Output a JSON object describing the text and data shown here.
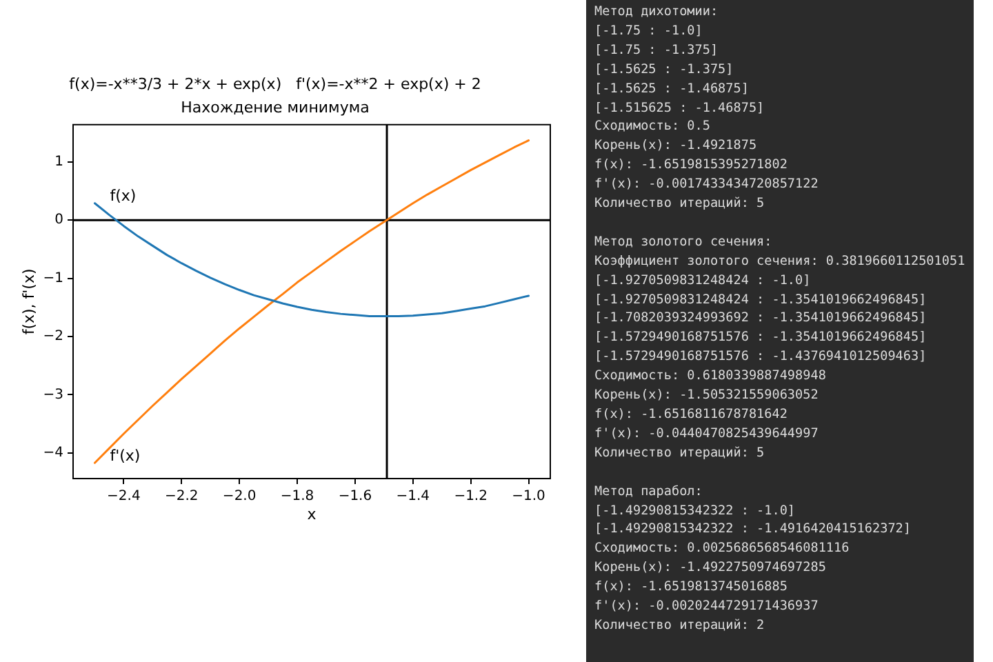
{
  "chart_data": {
    "type": "line",
    "title": "f(x)=-x**3/3 + 2*x + exp(x)   f'(x)=-x**2 + exp(x) + 2",
    "subtitle": "Нахождение минимума",
    "xlabel": "x",
    "ylabel": "f(x), f'(x)",
    "x": [
      -2.5,
      -2.45,
      -2.4,
      -2.35,
      -2.3,
      -2.25,
      -2.2,
      -2.15,
      -2.1,
      -2.05,
      -2.0,
      -1.95,
      -1.9,
      -1.85,
      -1.8,
      -1.75,
      -1.7,
      -1.65,
      -1.6,
      -1.55,
      -1.5,
      -1.45,
      -1.4,
      -1.35,
      -1.3,
      -1.25,
      -1.2,
      -1.15,
      -1.1,
      -1.05,
      -1.0
    ],
    "series": [
      {
        "name": "f(x)",
        "color": "#1f77b4",
        "values": [
          0.29,
          0.09,
          -0.1,
          -0.28,
          -0.44,
          -0.6,
          -0.74,
          -0.87,
          -0.99,
          -1.1,
          -1.2,
          -1.29,
          -1.36,
          -1.43,
          -1.49,
          -1.54,
          -1.58,
          -1.61,
          -1.63,
          -1.65,
          -1.65,
          -1.65,
          -1.64,
          -1.62,
          -1.6,
          -1.56,
          -1.52,
          -1.48,
          -1.42,
          -1.36,
          -1.3
        ]
      },
      {
        "name": "f'(x)",
        "color": "#ff7f0e",
        "values": [
          -4.17,
          -3.92,
          -3.67,
          -3.43,
          -3.19,
          -2.96,
          -2.73,
          -2.51,
          -2.29,
          -2.07,
          -1.86,
          -1.66,
          -1.46,
          -1.27,
          -1.07,
          -0.89,
          -0.71,
          -0.53,
          -0.36,
          -0.19,
          -0.03,
          0.13,
          0.29,
          0.44,
          0.58,
          0.72,
          0.86,
          0.99,
          1.12,
          1.25,
          1.37
        ]
      }
    ],
    "xlim": [
      -2.575,
      -0.925
    ],
    "ylim": [
      -4.44,
      1.64
    ],
    "xticks": [
      {
        "value": -2.4,
        "label": "−2.4"
      },
      {
        "value": -2.2,
        "label": "−2.2"
      },
      {
        "value": -2.0,
        "label": "−2.0"
      },
      {
        "value": -1.8,
        "label": "−1.8"
      },
      {
        "value": -1.6,
        "label": "−1.6"
      },
      {
        "value": -1.4,
        "label": "−1.4"
      },
      {
        "value": -1.2,
        "label": "−1.2"
      },
      {
        "value": -1.0,
        "label": "−1.0"
      }
    ],
    "yticks": [
      {
        "value": -4,
        "label": "−4"
      },
      {
        "value": -3,
        "label": "−3"
      },
      {
        "value": -2,
        "label": "−2"
      },
      {
        "value": -1,
        "label": "−1"
      },
      0,
      1
    ],
    "ref_lines": [
      {
        "axis": "y",
        "value": 0,
        "color": "#000000"
      },
      {
        "axis": "x",
        "value": -1.49,
        "color": "#000000"
      }
    ],
    "annotations": [
      "Метод дихотомии:\n[-1.75 : -1.0]\n[-1.75 : -1.375]\n[-1.5625 : -1.375]\n[-1.5625 : -1.46875]\n[-1.515625 : -1.46875]\nСходимость: 0.5\nКорень(x): -1.4921875\nf(x): -1.6519815395271802\nf'(x): -0.0017433434720857122\nКоличество итераций: 5",
      "Метод золотого сечения:\nКоэффициент золотого сечения: 0.3819660112501051\n[-1.9270509831248424 : -1.0]\n[-1.9270509831248424 : -1.3541019662496845]\n[-1.7082039324993692 : -1.3541019662496845]\n[-1.5729490168751576 : -1.3541019662496845]\n[-1.5729490168751576 : -1.4376941012509463]\nСходимость: 0.6180339887498948\nКорень(x): -1.505321559063052\nf(x): -1.6516811678781642\nf'(x): -0.0440470825439644997\nКоличество итераций: 5",
      "Метод парабол:\n[-1.49290815342322 : -1.0]\n[-1.49290815342322 : -1.4916420415162372]\nСходимость: 0.0025686568546081116\nКорень(x): -1.4922750974697285\nf(x): -1.6519813745016885\nf'(x): -0.0020244729171436937\nКоличество итераций: 2"
    ]
  }
}
